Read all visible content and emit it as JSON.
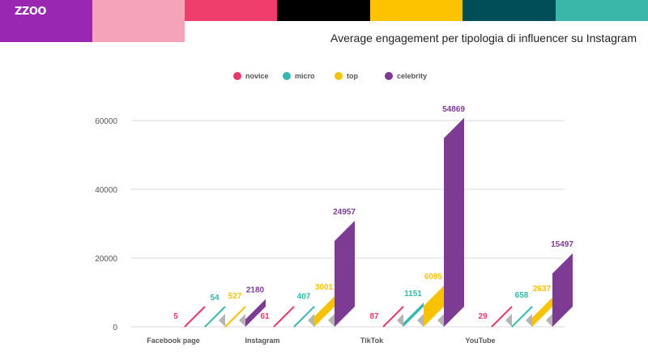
{
  "brand": {
    "logo_text": "ZZOO",
    "colors": [
      "#f03e6c",
      "#000000",
      "#fdc300",
      "#014d58",
      "#3ab7a8"
    ]
  },
  "chart_data": {
    "type": "bar",
    "title": "Average engagement per tipologia di influencer su Instagram",
    "categories": [
      "Facebook page",
      "Instagram",
      "TikTok",
      "YouTube"
    ],
    "series": [
      {
        "name": "novice",
        "color": "#e6396a",
        "values": [
          5,
          61,
          87,
          29
        ]
      },
      {
        "name": "micro",
        "color": "#36b7ac",
        "values": [
          54,
          407,
          1151,
          658
        ]
      },
      {
        "name": "top",
        "color": "#f7c300",
        "values": [
          527,
          3001,
          6095,
          2637
        ]
      },
      {
        "name": "celebrity",
        "color": "#7e3b94",
        "values": [
          2180,
          24957,
          54869,
          15497
        ]
      }
    ],
    "ylim": [
      0,
      60000
    ],
    "yticks": [
      0,
      20000,
      40000,
      60000
    ],
    "grid": true,
    "legend": "top-center"
  }
}
